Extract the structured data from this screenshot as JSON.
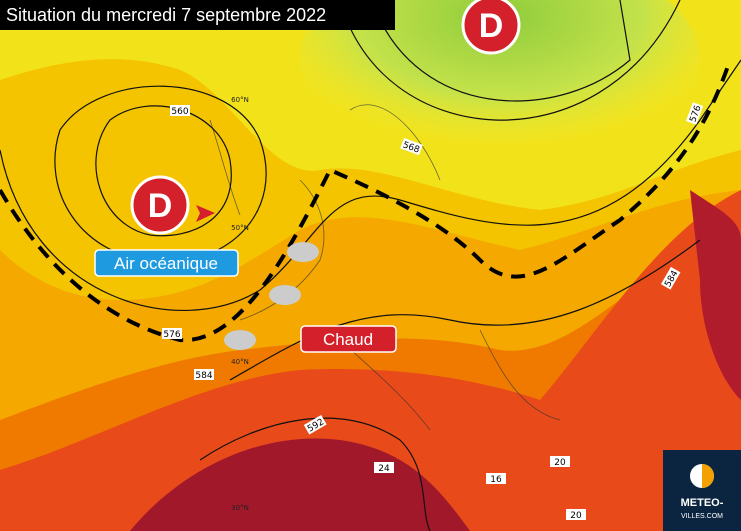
{
  "title": "Situation du mercredi 7 septembre 2022",
  "lows": [
    {
      "label": "D"
    },
    {
      "label": "D"
    }
  ],
  "labels": {
    "oceanic": "Air océanique",
    "hot": "Chaud"
  },
  "contour_labels": [
    "560",
    "568",
    "576",
    "576",
    "584",
    "584",
    "592",
    "24",
    "16",
    "20",
    "20"
  ],
  "latitude_labels": [
    "60°N",
    "50°N",
    "40°N",
    "30°N"
  ],
  "logo": {
    "line1": "METEO-",
    "line2": "VILLES.COM"
  }
}
